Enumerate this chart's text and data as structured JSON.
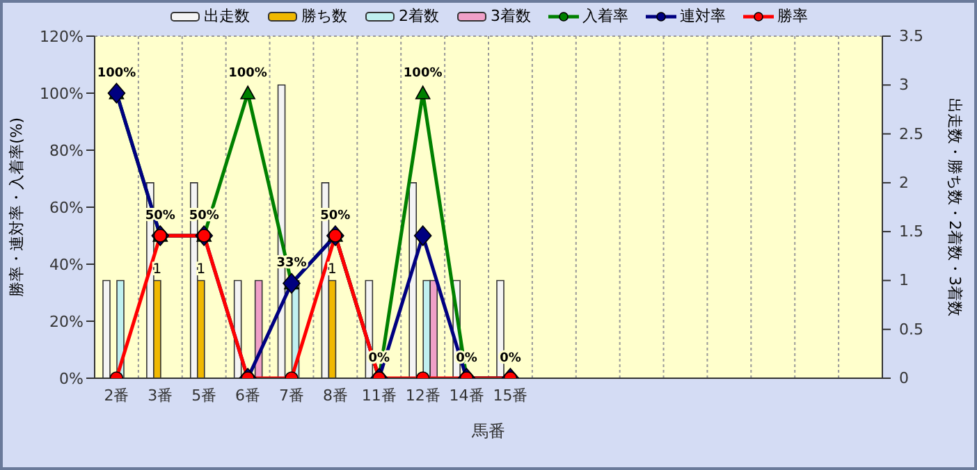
{
  "chart_data": {
    "type": "bar",
    "xlabel": "馬番",
    "ylabel": "勝率・連対率・入着率(%)",
    "y2label": "出走数・勝ち数・2着数・3着数",
    "categories": [
      "2番",
      "3番",
      "5番",
      "6番",
      "7番",
      "8番",
      "11番",
      "12番",
      "14番",
      "15番",
      null,
      null,
      null,
      null,
      null,
      null,
      null,
      null
    ],
    "series": [
      {
        "name": "出走数",
        "axis": "y2",
        "color": "#f4f4f4",
        "values": [
          1,
          2,
          2,
          1,
          3,
          2,
          1,
          2,
          1,
          1,
          null,
          null,
          null,
          null,
          null,
          null,
          null,
          null
        ]
      },
      {
        "name": "勝ち数",
        "axis": "y2",
        "color": "#f0b800",
        "values": [
          0,
          1,
          1,
          0,
          0,
          1,
          0,
          0,
          0,
          0,
          null,
          null,
          null,
          null,
          null,
          null,
          null,
          null
        ],
        "value_labels": [
          null,
          "1",
          "1",
          null,
          null,
          "1",
          null,
          null,
          null,
          null,
          null,
          null,
          null,
          null,
          null,
          null,
          null,
          null
        ]
      },
      {
        "name": "2着数",
        "axis": "y2",
        "color": "#c0f0f0",
        "values": [
          1,
          0,
          0,
          0,
          1,
          0,
          0,
          1,
          0,
          0,
          null,
          null,
          null,
          null,
          null,
          null,
          null,
          null
        ]
      },
      {
        "name": "3着数",
        "axis": "y2",
        "color": "#f0a0c8",
        "values": [
          0,
          0,
          0,
          1,
          0,
          0,
          0,
          1,
          0,
          0,
          null,
          null,
          null,
          null,
          null,
          null,
          null,
          null
        ]
      },
      {
        "name": "入着率",
        "type": "line",
        "axis": "y",
        "color": "#008000",
        "marker": "triangle",
        "values": [
          100,
          50,
          50,
          100,
          33.3,
          50,
          0,
          100,
          0,
          0,
          null,
          null,
          null,
          null,
          null,
          null,
          null,
          null
        ],
        "value_labels": [
          "100%",
          "50%",
          "50%",
          "100%",
          "33%",
          "50%",
          "0%",
          "100%",
          "0%",
          "0%",
          null,
          null,
          null,
          null,
          null,
          null,
          null,
          null
        ]
      },
      {
        "name": "連対率",
        "type": "line",
        "axis": "y",
        "color": "#000080",
        "marker": "diamond",
        "values": [
          100,
          50,
          50,
          0,
          33.3,
          50,
          0,
          50,
          0,
          0,
          null,
          null,
          null,
          null,
          null,
          null,
          null,
          null
        ]
      },
      {
        "name": "勝率",
        "type": "line",
        "axis": "y",
        "color": "#ff0000",
        "marker": "circle",
        "values": [
          0,
          50,
          50,
          0,
          0,
          50,
          0,
          0,
          0,
          0,
          null,
          null,
          null,
          null,
          null,
          null,
          null,
          null
        ]
      }
    ],
    "ylim": [
      0,
      120
    ],
    "yticks": [
      {
        "value": 0,
        "label": "0%"
      },
      {
        "value": 20,
        "label": "20%"
      },
      {
        "value": 40,
        "label": "40%"
      },
      {
        "value": 60,
        "label": "60%"
      },
      {
        "value": 80,
        "label": "80%"
      },
      {
        "value": 100,
        "label": "100%"
      },
      {
        "value": 120,
        "label": "120%"
      }
    ],
    "y2lim": [
      0,
      3.5
    ],
    "y2ticks": [
      0,
      0.5,
      1,
      1.5,
      2,
      2.5,
      3,
      3.5
    ],
    "grid": true,
    "legend": "top"
  }
}
